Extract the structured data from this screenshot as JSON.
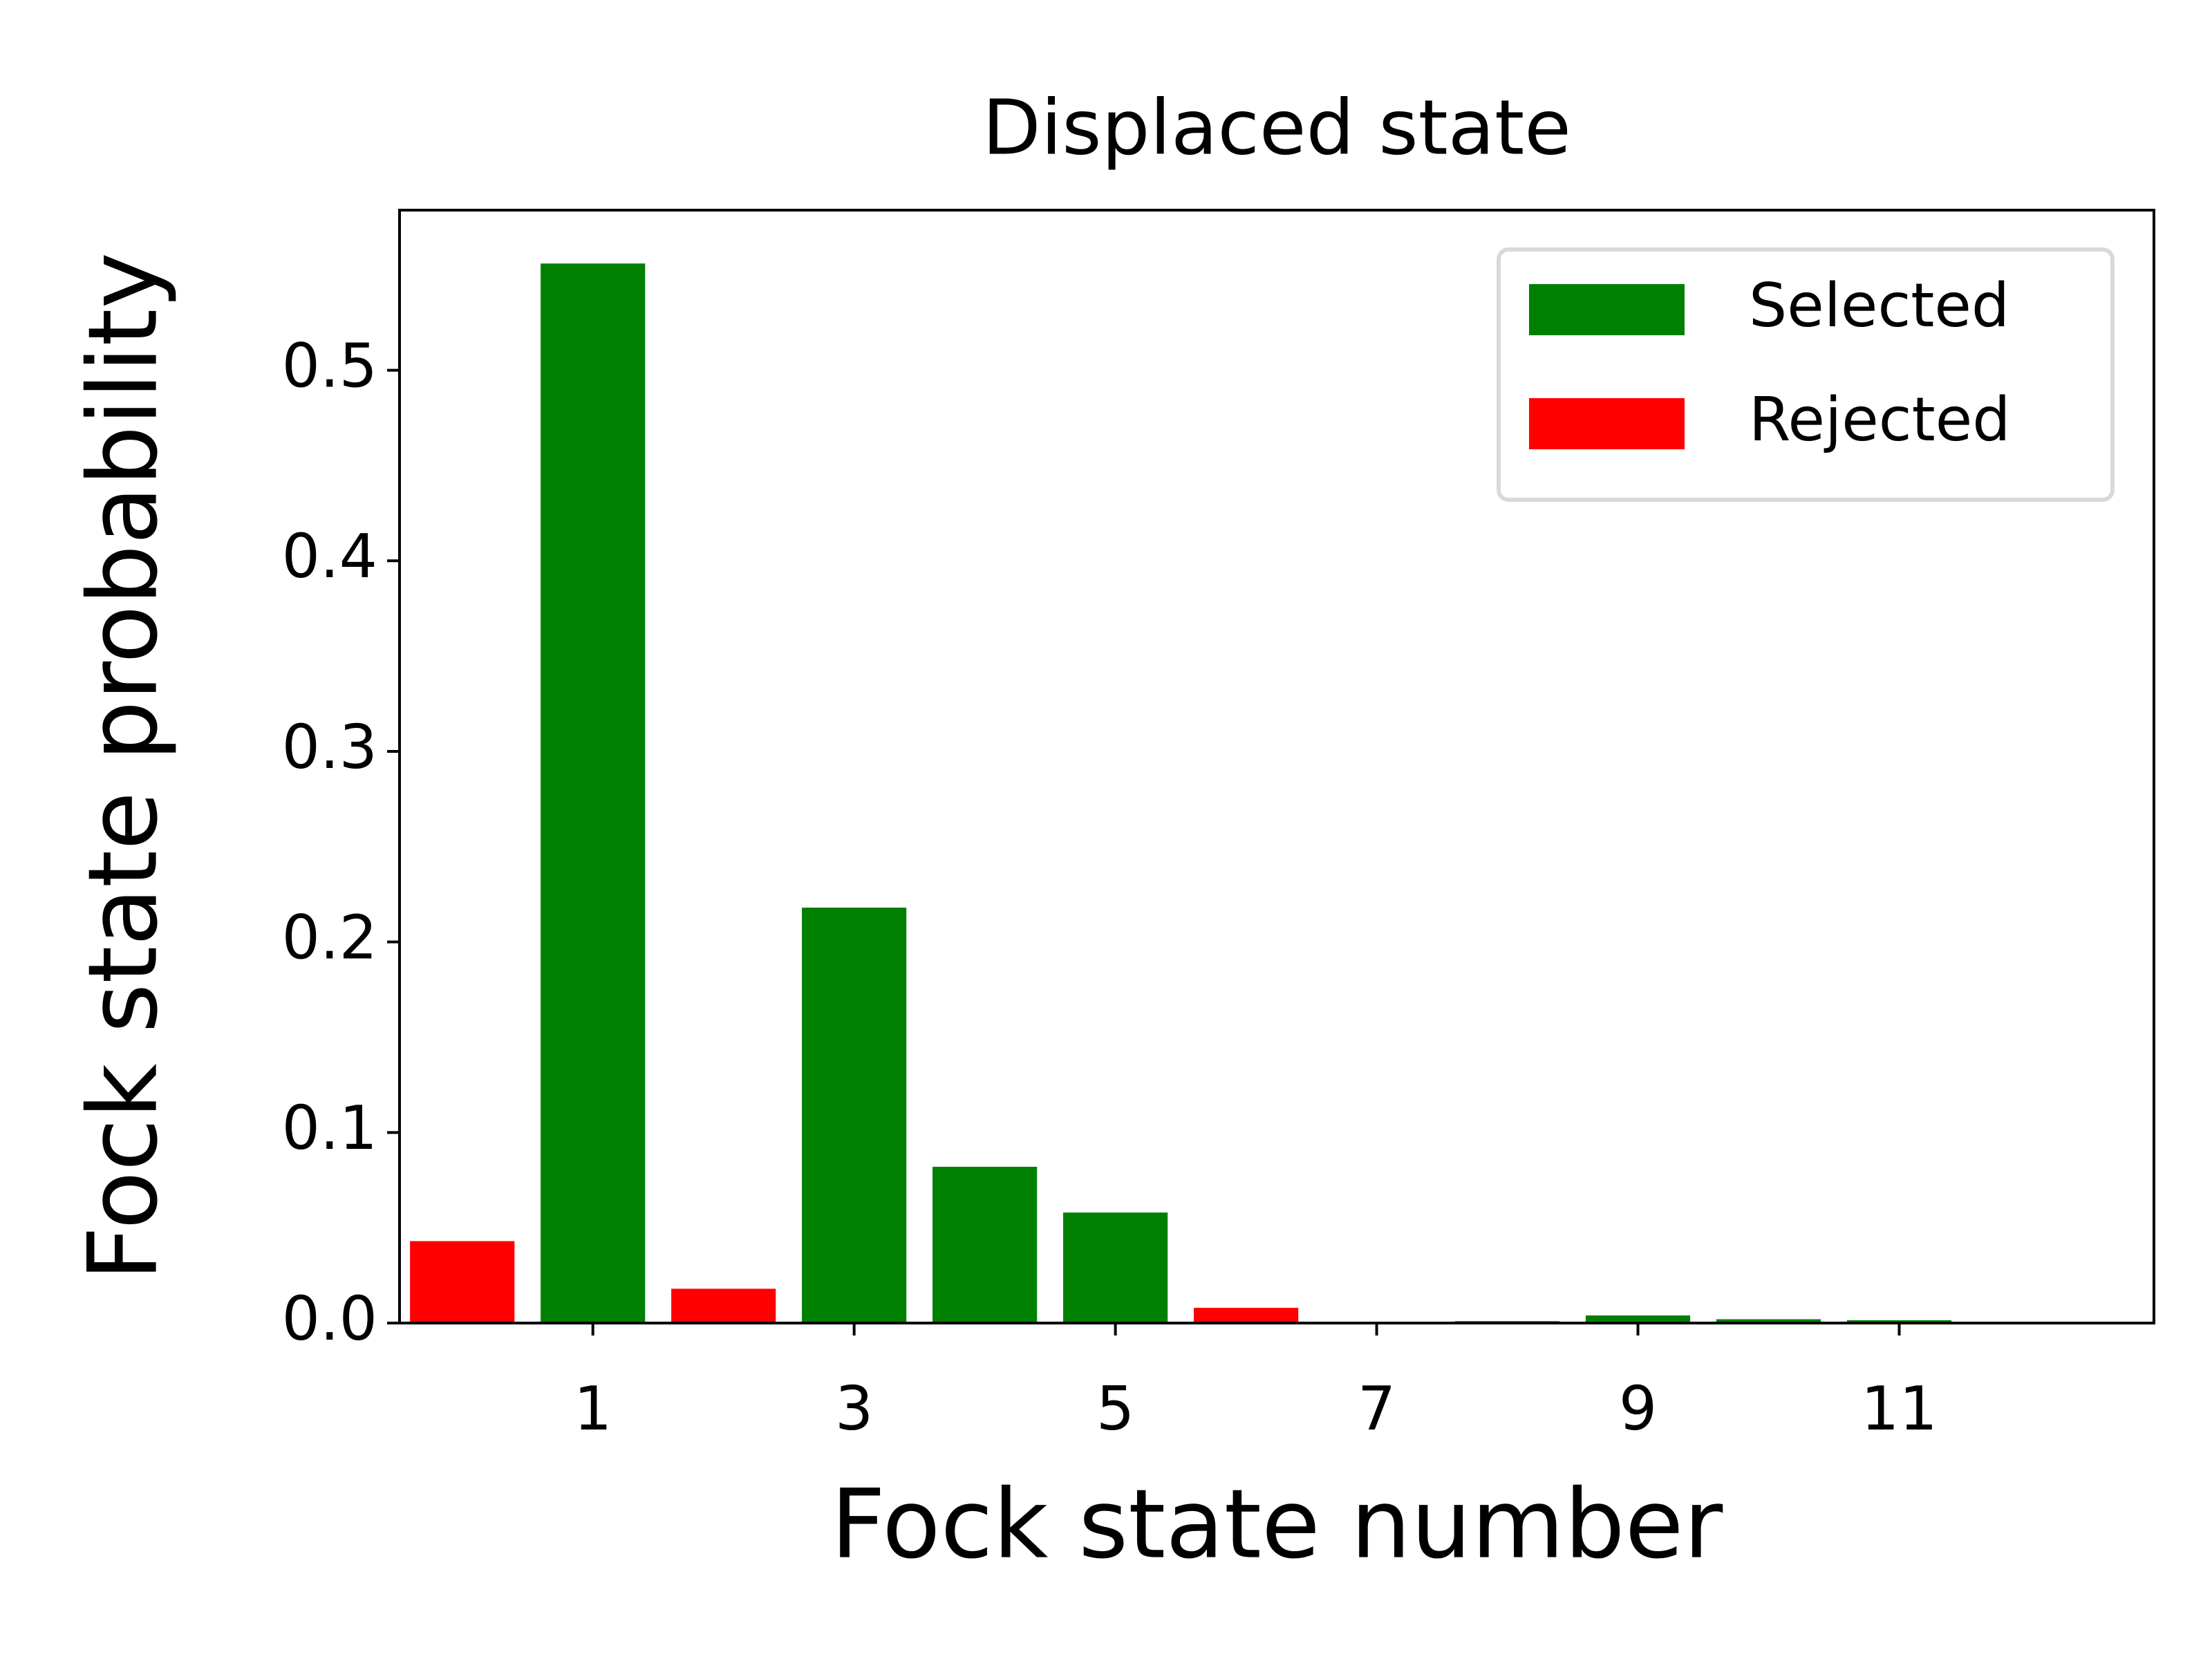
{
  "chart_data": {
    "type": "bar",
    "title": "Displaced state",
    "x_label": "Fock state number",
    "y_label": "Fock state probability",
    "x": [
      0,
      1,
      2,
      3,
      4,
      5,
      6,
      7,
      8,
      9,
      10,
      11
    ],
    "series": [
      {
        "name": "Selected",
        "color": "#008000",
        "values": [
          null,
          0.556,
          null,
          0.218,
          0.082,
          0.058,
          null,
          0.0005,
          null,
          0.004,
          0.002,
          0.0015
        ]
      },
      {
        "name": "Rejected",
        "color": "#ff0000",
        "values": [
          0.043,
          null,
          0.018,
          null,
          null,
          null,
          0.008,
          null,
          0.001,
          null,
          null,
          null
        ]
      }
    ],
    "xlim": [
      -0.48,
      12.95
    ],
    "xticks": [
      1,
      3,
      5,
      7,
      9,
      11
    ],
    "ylim": [
      0,
      0.584
    ],
    "yticks": [
      {
        "value": 0,
        "label": "0.0"
      },
      0.1,
      0.2,
      0.3,
      0.4,
      0.5
    ],
    "legend": "upper right",
    "grid": false
  }
}
